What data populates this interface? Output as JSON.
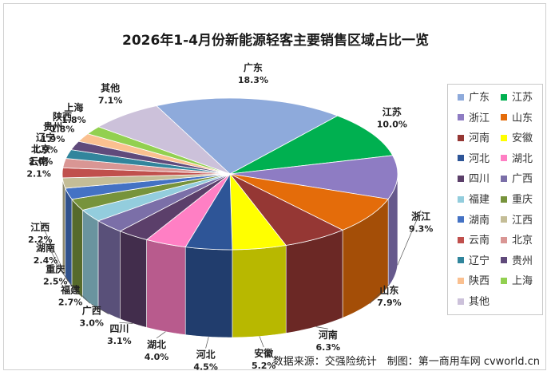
{
  "title": "2026年1-4月份新能源轻客主要销售区域占比一览",
  "source": "数据来源：交强险统计　制图：第一商用车网 cvworld.cn",
  "chart_data": {
    "type": "pie",
    "unit": "%",
    "legend_position": "right",
    "slices": [
      {
        "name": "广东",
        "value": 18.3,
        "label": "18.3%",
        "color": "#8EAADB"
      },
      {
        "name": "江苏",
        "value": 10.0,
        "label": "10.0%",
        "color": "#00B050"
      },
      {
        "name": "浙江",
        "value": 9.3,
        "label": "9.3%",
        "color": "#8E7CC3"
      },
      {
        "name": "山东",
        "value": 7.9,
        "label": "7.9%",
        "color": "#E46C0A"
      },
      {
        "name": "河南",
        "value": 6.3,
        "label": "6.3%",
        "color": "#953734"
      },
      {
        "name": "安徽",
        "value": 5.2,
        "label": "5.2%",
        "color": "#FFFF00"
      },
      {
        "name": "河北",
        "value": 4.5,
        "label": "4.5%",
        "color": "#2E5597"
      },
      {
        "name": "湖北",
        "value": 4.0,
        "label": "4.0%",
        "color": "#FF7FC4"
      },
      {
        "name": "四川",
        "value": 3.1,
        "label": "3.1%",
        "color": "#5B3F6A"
      },
      {
        "name": "广西",
        "value": 3.0,
        "label": "3.0%",
        "color": "#7B6FA8"
      },
      {
        "name": "福建",
        "value": 2.7,
        "label": "2.7%",
        "color": "#93CDDD"
      },
      {
        "name": "重庆",
        "value": 2.5,
        "label": "2.5%",
        "color": "#77933C"
      },
      {
        "name": "湖南",
        "value": 2.4,
        "label": "2.4%",
        "color": "#4472C4"
      },
      {
        "name": "江西",
        "value": 2.2,
        "label": "2.2%",
        "color": "#C4BD97"
      },
      {
        "name": "云南",
        "value": 2.1,
        "label": "2.1%",
        "color": "#C0504D"
      },
      {
        "name": "北京",
        "value": 2.0,
        "label": "2.0%",
        "color": "#D99694"
      },
      {
        "name": "辽宁",
        "value": 1.9,
        "label": "1.9%",
        "color": "#31859C"
      },
      {
        "name": "贵州",
        "value": 1.9,
        "label": "1.9%",
        "color": "#604A7B"
      },
      {
        "name": "陕西",
        "value": 1.8,
        "label": "1.8%",
        "color": "#FAC090"
      },
      {
        "name": "上海",
        "value": 1.8,
        "label": "1.8%",
        "color": "#92D050"
      },
      {
        "name": "其他",
        "value": 7.1,
        "label": "7.1%",
        "color": "#CCC1DA"
      }
    ]
  }
}
